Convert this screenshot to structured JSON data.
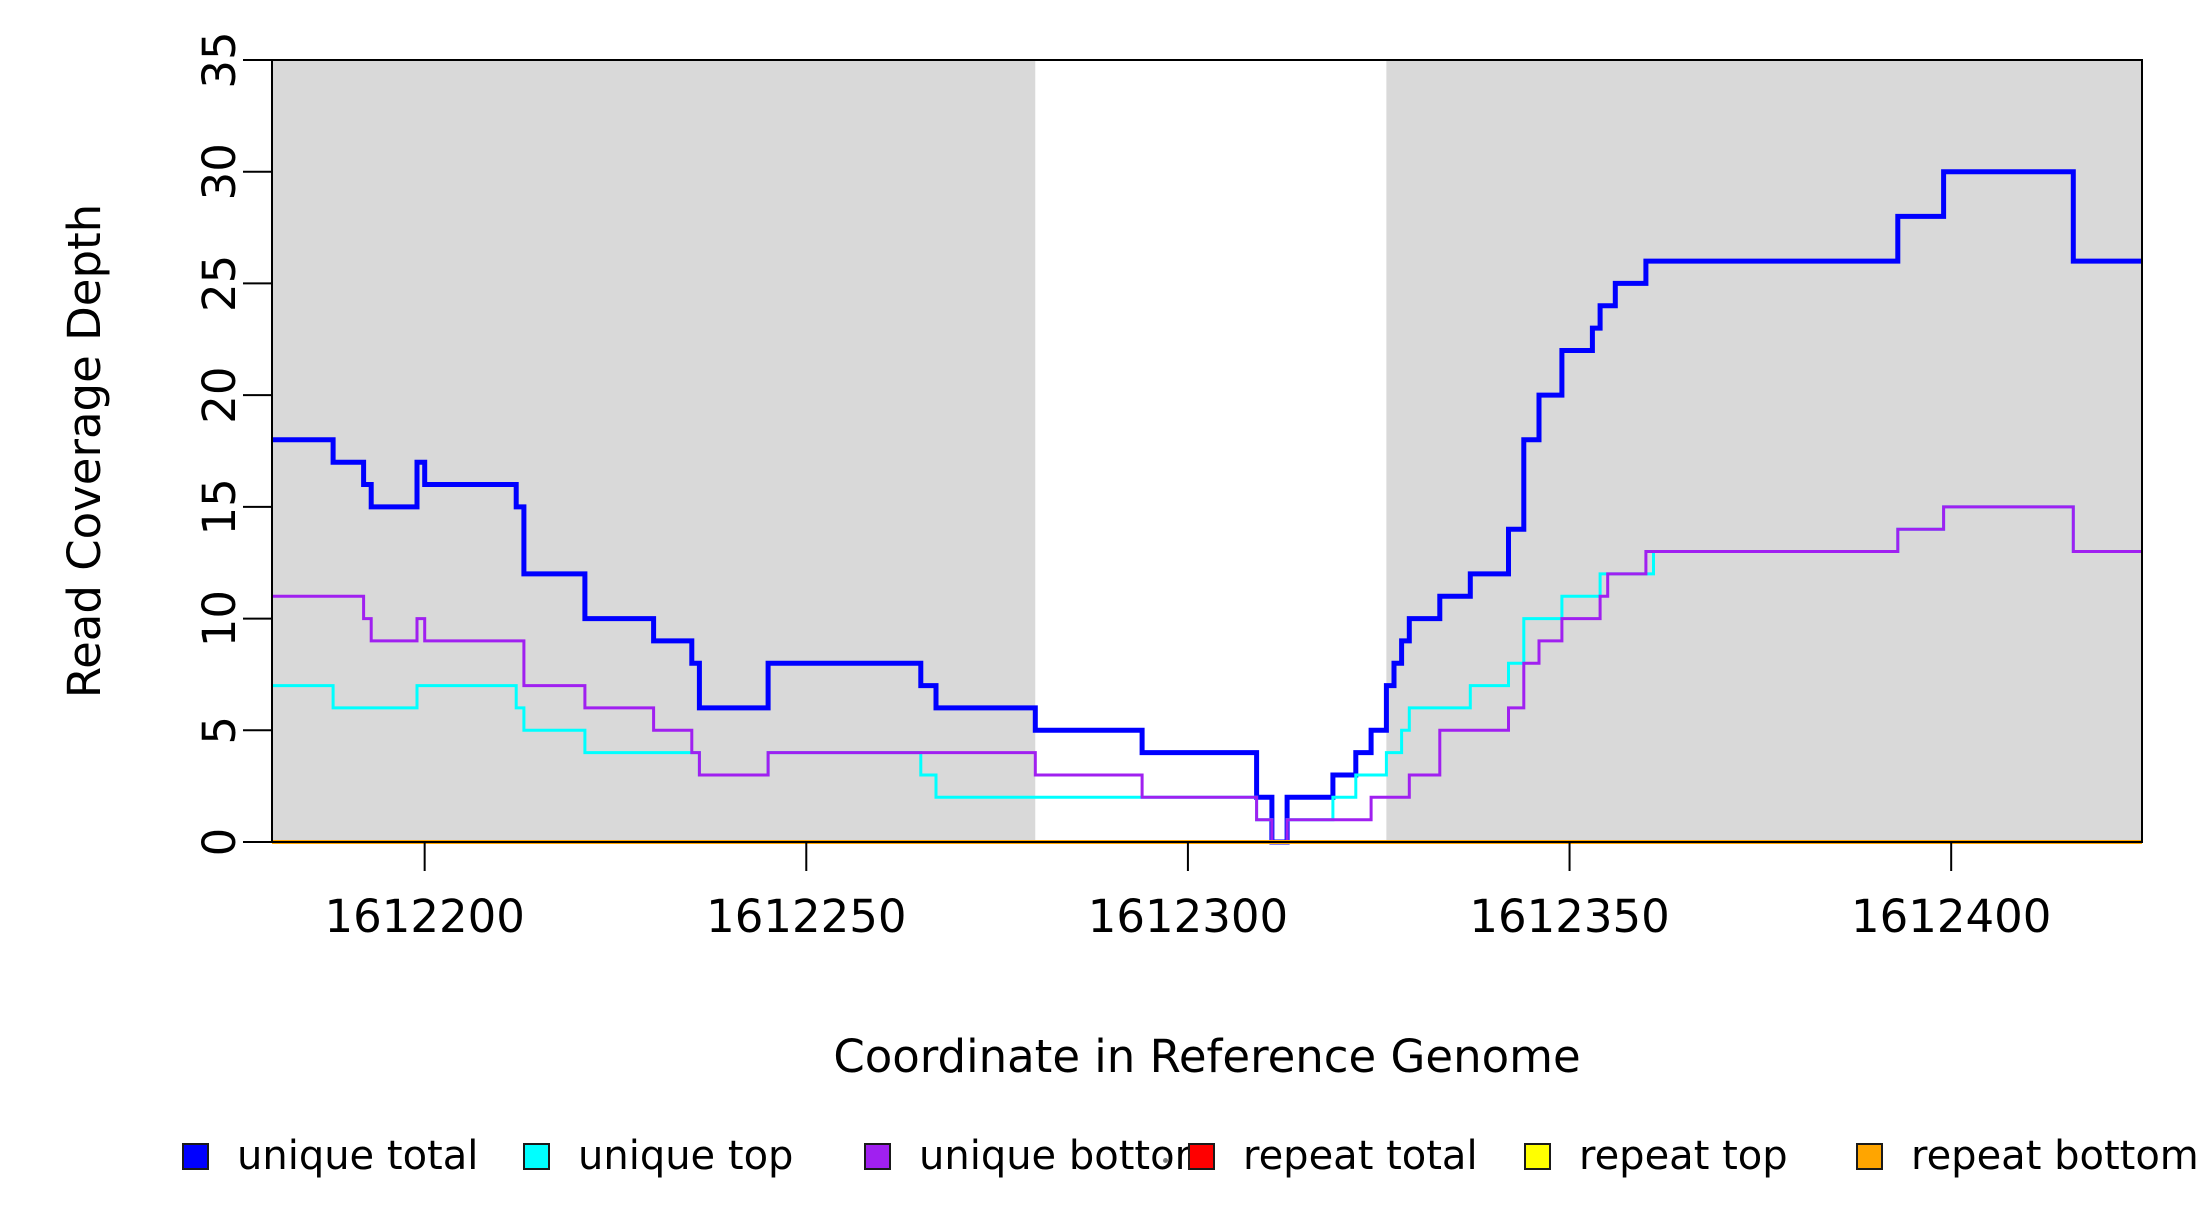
{
  "titles": {
    "x": "Coordinate in Reference Genome",
    "y": "Read Coverage Depth"
  },
  "chart_data": {
    "type": "line",
    "subtype": "step-post",
    "title": "",
    "xlabel": "Coordinate in Reference Genome",
    "ylabel": "Read Coverage Depth",
    "xlim": [
      1612180,
      1612425
    ],
    "ylim": [
      0,
      35
    ],
    "grid": false,
    "x_ticks": [
      1612200,
      1612250,
      1612300,
      1612350,
      1612400
    ],
    "y_ticks": [
      0,
      5,
      10,
      15,
      20,
      25,
      30,
      35
    ],
    "shaded_bands": {
      "color": "#D9D9D9",
      "note": "gray background rectangles; middle region left white",
      "regions": [
        [
          1612180,
          1612280
        ],
        [
          1612326,
          1612425
        ]
      ]
    },
    "series": [
      {
        "name": "unique total",
        "color": "#0000FF",
        "stroke_width": 5,
        "points": [
          [
            1612180,
            18
          ],
          [
            1612188,
            17
          ],
          [
            1612192,
            16
          ],
          [
            1612193,
            15
          ],
          [
            1612199,
            17
          ],
          [
            1612200,
            16
          ],
          [
            1612212,
            15
          ],
          [
            1612213,
            12
          ],
          [
            1612221,
            10
          ],
          [
            1612230,
            9
          ],
          [
            1612235,
            8
          ],
          [
            1612236,
            6
          ],
          [
            1612245,
            8
          ],
          [
            1612265,
            7
          ],
          [
            1612267,
            6
          ],
          [
            1612280,
            5
          ],
          [
            1612294,
            4
          ],
          [
            1612309,
            2
          ],
          [
            1612311,
            0
          ],
          [
            1612313,
            2
          ],
          [
            1612319,
            3
          ],
          [
            1612322,
            4
          ],
          [
            1612324,
            5
          ],
          [
            1612326,
            7
          ],
          [
            1612327,
            8
          ],
          [
            1612328,
            9
          ],
          [
            1612329,
            10
          ],
          [
            1612333,
            11
          ],
          [
            1612337,
            12
          ],
          [
            1612342,
            14
          ],
          [
            1612344,
            18
          ],
          [
            1612346,
            20
          ],
          [
            1612349,
            22
          ],
          [
            1612353,
            23
          ],
          [
            1612354,
            24
          ],
          [
            1612356,
            25
          ],
          [
            1612360,
            26
          ],
          [
            1612393,
            28
          ],
          [
            1612399,
            30
          ],
          [
            1612416,
            26
          ],
          [
            1612425,
            26
          ]
        ]
      },
      {
        "name": "unique top",
        "color": "#00FFFF",
        "stroke_width": 3,
        "points": [
          [
            1612180,
            7
          ],
          [
            1612188,
            6
          ],
          [
            1612199,
            7
          ],
          [
            1612212,
            6
          ],
          [
            1612213,
            5
          ],
          [
            1612221,
            4
          ],
          [
            1612236,
            3
          ],
          [
            1612245,
            4
          ],
          [
            1612265,
            3
          ],
          [
            1612267,
            2
          ],
          [
            1612309,
            1
          ],
          [
            1612311,
            0
          ],
          [
            1612313,
            1
          ],
          [
            1612319,
            2
          ],
          [
            1612322,
            3
          ],
          [
            1612326,
            4
          ],
          [
            1612328,
            5
          ],
          [
            1612329,
            6
          ],
          [
            1612337,
            7
          ],
          [
            1612342,
            8
          ],
          [
            1612344,
            10
          ],
          [
            1612349,
            11
          ],
          [
            1612354,
            12
          ],
          [
            1612361,
            13
          ],
          [
            1612393,
            14
          ],
          [
            1612399,
            15
          ],
          [
            1612416,
            13
          ],
          [
            1612425,
            13
          ]
        ]
      },
      {
        "name": "unique bottom",
        "color": "#A020F0",
        "stroke_width": 3,
        "points": [
          [
            1612180,
            11
          ],
          [
            1612192,
            10
          ],
          [
            1612193,
            9
          ],
          [
            1612199,
            10
          ],
          [
            1612200,
            9
          ],
          [
            1612213,
            7
          ],
          [
            1612221,
            6
          ],
          [
            1612230,
            5
          ],
          [
            1612235,
            4
          ],
          [
            1612236,
            3
          ],
          [
            1612245,
            4
          ],
          [
            1612280,
            3
          ],
          [
            1612294,
            2
          ],
          [
            1612309,
            1
          ],
          [
            1612311,
            0
          ],
          [
            1612313,
            1
          ],
          [
            1612324,
            2
          ],
          [
            1612329,
            3
          ],
          [
            1612333,
            5
          ],
          [
            1612342,
            6
          ],
          [
            1612344,
            8
          ],
          [
            1612346,
            9
          ],
          [
            1612349,
            10
          ],
          [
            1612354,
            11
          ],
          [
            1612355,
            12
          ],
          [
            1612360,
            13
          ],
          [
            1612393,
            14
          ],
          [
            1612399,
            15
          ],
          [
            1612416,
            13
          ],
          [
            1612425,
            13
          ]
        ]
      },
      {
        "name": "repeat total",
        "color": "#FF0000",
        "stroke_width": 3,
        "points": [
          [
            1612180,
            0
          ],
          [
            1612425,
            0
          ]
        ]
      },
      {
        "name": "repeat top",
        "color": "#FFFF00",
        "stroke_width": 3,
        "points": [
          [
            1612180,
            0
          ],
          [
            1612425,
            0
          ]
        ]
      },
      {
        "name": "repeat bottom",
        "color": "#FFA500",
        "stroke_width": 4,
        "points": [
          [
            1612180,
            0
          ],
          [
            1612425,
            0
          ]
        ]
      }
    ],
    "legend": {
      "position": "bottom",
      "entries": [
        {
          "label": "unique total",
          "color": "#0000FF"
        },
        {
          "label": "unique top",
          "color": "#00FFFF"
        },
        {
          "label": "unique bottom",
          "color": "#A020F0"
        },
        {
          "label": "repeat total",
          "color": "#FF0000"
        },
        {
          "label": "repeat top",
          "color": "#FFFF00"
        },
        {
          "label": "repeat bottom",
          "color": "#FFA500"
        }
      ]
    }
  }
}
